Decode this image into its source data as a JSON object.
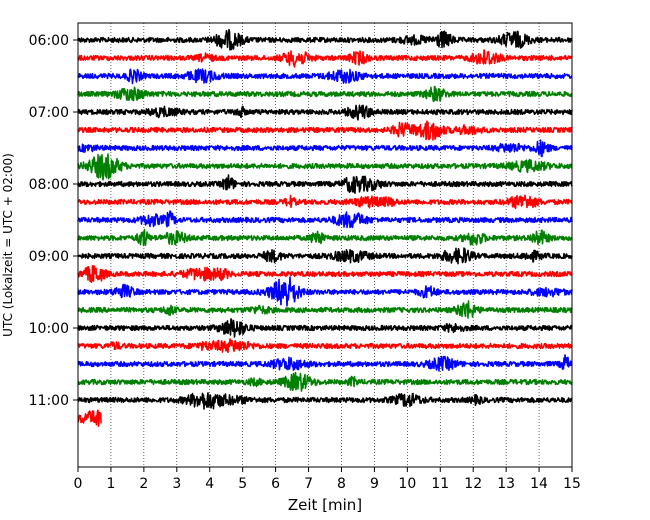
{
  "chart_data": {
    "type": "line",
    "title": "",
    "xlabel": "Zeit  [min]",
    "ylabel": "UTC (Lokalzeit = UTC + 02:00)",
    "xlim": [
      0,
      15
    ],
    "x_ticks": [
      "0",
      "1",
      "2",
      "3",
      "4",
      "5",
      "6",
      "7",
      "8",
      "9",
      "10",
      "11",
      "12",
      "13",
      "14",
      "15"
    ],
    "y_tick_labels": [
      "06:00",
      "07:00",
      "08:00",
      "09:00",
      "10:00",
      "11:00"
    ],
    "grid": "vertical-dotted",
    "trace_interval_minutes": 15,
    "color_cycle": [
      "#000000",
      "#ff0000",
      "#0000ff",
      "#008000"
    ],
    "series": [
      {
        "start": "06:00",
        "x_end": 15,
        "color": "#000000"
      },
      {
        "start": "06:15",
        "x_end": 15,
        "color": "#ff0000"
      },
      {
        "start": "06:30",
        "x_end": 15,
        "color": "#0000ff"
      },
      {
        "start": "06:45",
        "x_end": 15,
        "color": "#008000"
      },
      {
        "start": "07:00",
        "x_end": 15,
        "color": "#000000"
      },
      {
        "start": "07:15",
        "x_end": 15,
        "color": "#ff0000"
      },
      {
        "start": "07:30",
        "x_end": 15,
        "color": "#0000ff"
      },
      {
        "start": "07:45",
        "x_end": 15,
        "color": "#008000"
      },
      {
        "start": "08:00",
        "x_end": 15,
        "color": "#000000"
      },
      {
        "start": "08:15",
        "x_end": 15,
        "color": "#ff0000"
      },
      {
        "start": "08:30",
        "x_end": 15,
        "color": "#0000ff"
      },
      {
        "start": "08:45",
        "x_end": 15,
        "color": "#008000"
      },
      {
        "start": "09:00",
        "x_end": 15,
        "color": "#000000"
      },
      {
        "start": "09:15",
        "x_end": 15,
        "color": "#ff0000"
      },
      {
        "start": "09:30",
        "x_end": 15,
        "color": "#0000ff"
      },
      {
        "start": "09:45",
        "x_end": 15,
        "color": "#008000"
      },
      {
        "start": "10:00",
        "x_end": 15,
        "color": "#000000"
      },
      {
        "start": "10:15",
        "x_end": 15,
        "color": "#ff0000"
      },
      {
        "start": "10:30",
        "x_end": 15,
        "color": "#0000ff"
      },
      {
        "start": "10:45",
        "x_end": 15,
        "color": "#008000"
      },
      {
        "start": "11:00",
        "x_end": 15,
        "color": "#000000"
      },
      {
        "start": "11:15",
        "x_end": 0.7,
        "color": "#ff0000"
      }
    ]
  }
}
